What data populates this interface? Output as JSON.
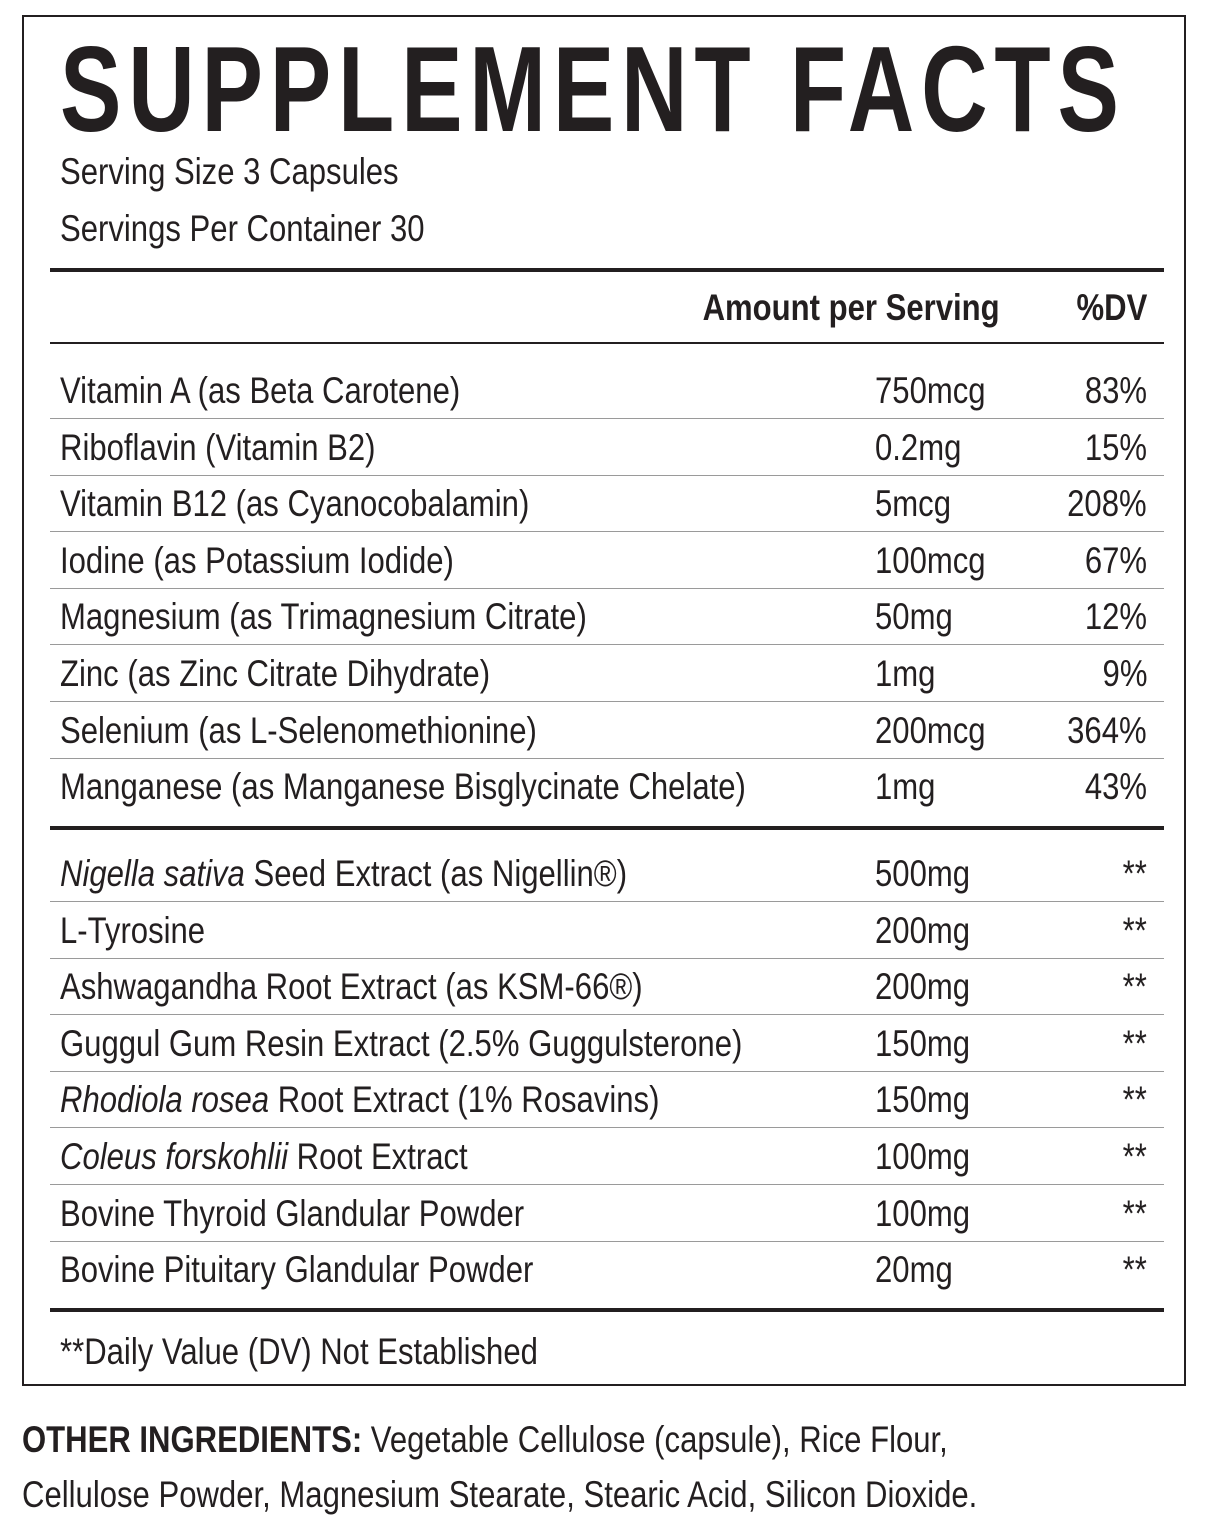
{
  "title": "SUPPLEMENT FACTS",
  "serving_size": "Serving Size 3 Capsules",
  "servings_per_container": "Servings Per Container 30",
  "header": {
    "amount": "Amount per Serving",
    "dv": "%DV"
  },
  "vitamins": [
    {
      "italic": "",
      "name": "Vitamin A (as Beta Carotene)",
      "amount": "750mcg",
      "dv": "83%"
    },
    {
      "italic": "",
      "name": "Riboflavin (Vitamin B2)",
      "amount": "0.2mg",
      "dv": "15%"
    },
    {
      "italic": "",
      "name": "Vitamin B12 (as Cyanocobalamin)",
      "amount": "5mcg",
      "dv": "208%"
    },
    {
      "italic": "",
      "name": "Iodine (as Potassium Iodide)",
      "amount": "100mcg",
      "dv": "67%"
    },
    {
      "italic": "",
      "name": "Magnesium (as Trimagnesium Citrate)",
      "amount": "50mg",
      "dv": "12%"
    },
    {
      "italic": "",
      "name": "Zinc (as Zinc Citrate Dihydrate)",
      "amount": "1mg",
      "dv": "9%"
    },
    {
      "italic": "",
      "name": "Selenium (as L-Selenomethionine)",
      "amount": "200mcg",
      "dv": "364%"
    },
    {
      "italic": "",
      "name": "Manganese (as Manganese Bisglycinate Chelate)",
      "amount": "1mg",
      "dv": "43%"
    }
  ],
  "ingredients": [
    {
      "italic": "Nigella sativa",
      "name": " Seed Extract (as Nigellin®)",
      "amount": "500mg",
      "dv": "**"
    },
    {
      "italic": "",
      "name": "L-Tyrosine",
      "amount": "200mg",
      "dv": "**"
    },
    {
      "italic": "",
      "name": "Ashwagandha Root Extract (as KSM-66®)",
      "amount": "200mg",
      "dv": "**"
    },
    {
      "italic": "",
      "name": "Guggul Gum Resin Extract (2.5% Guggulsterone)",
      "amount": "150mg",
      "dv": "**"
    },
    {
      "italic": "Rhodiola rosea",
      "name": " Root Extract (1% Rosavins)",
      "amount": "150mg",
      "dv": "**"
    },
    {
      "italic": "Coleus forskohlii",
      "name": " Root Extract",
      "amount": "100mg",
      "dv": "**"
    },
    {
      "italic": "",
      "name": "Bovine Thyroid Glandular Powder",
      "amount": "100mg",
      "dv": "**"
    },
    {
      "italic": "",
      "name": "Bovine Pituitary Glandular Powder",
      "amount": "20mg",
      "dv": "**"
    }
  ],
  "footnote": "**Daily Value (DV) Not Established",
  "other_ingredients": {
    "label": "OTHER INGREDIENTS:",
    "line1": " Vegetable Cellulose (capsule), Rice Flour,",
    "line2": "Cellulose Powder, Magnesium Stearate, Stearic Acid, Silicon Dioxide."
  }
}
